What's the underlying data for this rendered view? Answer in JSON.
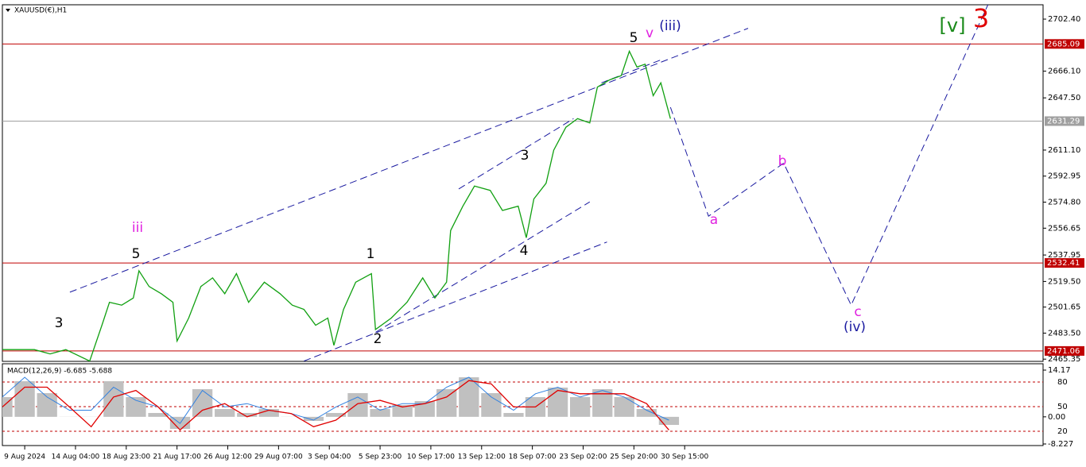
{
  "chart_data": [
    {
      "type": "line",
      "title": "XAUUSD(€),H1",
      "xlim": [
        -0.44,
        20.06
      ],
      "xticks": [
        {
          "value": 0,
          "label": "9 Aug 2024"
        },
        {
          "value": 1,
          "label": "14 Aug 04:00"
        },
        {
          "value": 2,
          "label": "18 Aug 23:00"
        },
        {
          "value": 3,
          "label": "21 Aug 17:00"
        },
        {
          "value": 4,
          "label": "26 Aug 12:00"
        },
        {
          "value": 5,
          "label": "29 Aug 07:00"
        },
        {
          "value": 6,
          "label": "3 Sep 04:00"
        },
        {
          "value": 7,
          "label": "5 Sep 23:00"
        },
        {
          "value": 8,
          "label": "10 Sep 17:00"
        },
        {
          "value": 9,
          "label": "13 Sep 12:00"
        },
        {
          "value": 10,
          "label": "18 Sep 07:00"
        },
        {
          "value": 11,
          "label": "23 Sep 02:00"
        },
        {
          "value": 12,
          "label": "25 Sep 20:00"
        },
        {
          "value": 13,
          "label": "30 Sep 15:00"
        }
      ],
      "ylim": [
        2463.8,
        2712.4
      ],
      "yticks": [
        {
          "value": 2702.4,
          "label": "2702.40"
        },
        {
          "value": 2666.1,
          "label": "2666.10"
        },
        {
          "value": 2647.5,
          "label": "2647.50"
        },
        {
          "value": 2611.1,
          "label": "2611.10"
        },
        2592.95,
        {
          "value": 2574.8,
          "label": "2574.80"
        },
        2556.65,
        2537.95,
        {
          "value": 2519.5,
          "label": "2519.50"
        },
        2501.65,
        {
          "value": 2483.5,
          "label": "2483.50"
        },
        2465.35
      ],
      "hlines": [
        {
          "value": 2685.09,
          "color": "#c00000"
        },
        {
          "value": 2631.29,
          "color": "#a0a0a0"
        },
        {
          "value": 2532.41,
          "color": "#c00000"
        },
        {
          "value": 2471.06,
          "color": "#c00000"
        }
      ],
      "x": [
        -0.44,
        0.19,
        0.5,
        0.81,
        1.28,
        1.52,
        1.67,
        1.91,
        2.14,
        2.25,
        2.45,
        2.69,
        2.92,
        3,
        3.23,
        3.47,
        3.7,
        3.94,
        4.17,
        4.41,
        4.72,
        5.03,
        5.27,
        5.5,
        5.73,
        5.97,
        6.09,
        6.28,
        6.52,
        6.83,
        6.91,
        7.22,
        7.53,
        7.84,
        8.08,
        8.31,
        8.39,
        8.63,
        8.86,
        9.17,
        9.41,
        9.72,
        9.88,
        10.03,
        10.27,
        10.42,
        10.66,
        10.89,
        11.13,
        11.28,
        11.52,
        11.75,
        11.91,
        12.06,
        12.22,
        12.38,
        12.53,
        12.72
      ],
      "series": [
        {
          "color": "#11a011",
          "values": [
            2472,
            2472,
            2469,
            2472,
            2464,
            2489,
            2505,
            2503,
            2508,
            2527,
            2516,
            2511,
            2505,
            2478,
            2494,
            2516,
            2522,
            2511,
            2525,
            2505,
            2519,
            2511,
            2503,
            2500,
            2489,
            2494,
            2475,
            2500,
            2519,
            2525,
            2486,
            2494,
            2505,
            2522,
            2508,
            2519,
            2555,
            2572,
            2586,
            2583,
            2569,
            2572,
            2550,
            2577,
            2588,
            2611,
            2627,
            2633,
            2630,
            2655,
            2660,
            2663,
            2680,
            2669,
            2671,
            2649,
            2658,
            2633
          ]
        }
      ],
      "projection": {
        "color": "#1a1aa0",
        "x": [
          12.72,
          13.47,
          14.95,
          16.28,
          19.02
        ],
        "values": [
          2641,
          2565,
          2602,
          2503,
          2716
        ]
      },
      "trendline_color": "#1a1aa0",
      "trendlines": [
        {
          "x": [
            0.89,
            14.25
          ],
          "values": [
            2512,
            2696
          ]
        },
        {
          "x": [
            8.55,
            10.81
          ],
          "values": [
            2584,
            2633
          ]
        },
        {
          "x": [
            6.91,
            11.13
          ],
          "values": [
            2484,
            2575
          ]
        },
        {
          "x": [
            5.5,
            11.47
          ],
          "values": [
            2464,
            2547
          ]
        },
        {
          "x": [
            11.36,
            12.53
          ],
          "values": [
            2658,
            2674
          ]
        }
      ],
      "wave_labels": [
        {
          "text": "3",
          "color": "#000000"
        },
        {
          "text": "iii",
          "color": "#e020e0"
        },
        {
          "text": "5",
          "color": "#000000"
        },
        {
          "text": "1",
          "color": "#000000"
        },
        {
          "text": "2",
          "color": "#000000"
        },
        {
          "text": "3",
          "color": "#000000"
        },
        {
          "text": "4",
          "color": "#000000"
        },
        {
          "text": "5",
          "color": "#000000"
        },
        {
          "text": "v",
          "color": "#e020e0"
        },
        {
          "text": "(iii)",
          "color": "#1a1aa0"
        },
        {
          "text": "a",
          "color": "#e020e0"
        },
        {
          "text": "b",
          "color": "#e020e0"
        },
        {
          "text": "c",
          "color": "#e020e0"
        },
        {
          "text": "(iv)",
          "color": "#1a1aa0"
        },
        {
          "text": "[v]",
          "color": "#1a8a1a"
        },
        {
          "text": "3",
          "color": "#e00000"
        }
      ]
    },
    {
      "type": "macd",
      "title": "MACD(12,26,9) -6.685 -5.688",
      "ylim": [
        -8.71,
        16.1
      ],
      "yticks": [
        14.17,
        {
          "value": 0,
          "label": "0.00"
        },
        -8.227
      ],
      "level_labels": [
        "80",
        "50",
        "20"
      ],
      "x": [
        -0.44,
        0,
        0.44,
        0.88,
        1.31,
        1.75,
        2.19,
        2.63,
        3.06,
        3.5,
        3.94,
        4.38,
        4.81,
        5.25,
        5.69,
        6.13,
        6.56,
        7,
        7.44,
        7.88,
        8.31,
        8.75,
        9.19,
        9.63,
        10.06,
        10.5,
        10.94,
        11.38,
        11.81,
        12.25,
        12.69
      ],
      "histogram": {
        "color": "#c0c0c0",
        "values": [
          5.98,
          10.8,
          7.19,
          -0.04,
          -0.04,
          10.8,
          5.98,
          1.17,
          -3.65,
          8.39,
          2.37,
          1.17,
          2.37,
          -0.04,
          -1.24,
          1.17,
          7.19,
          2.37,
          3.57,
          4.78,
          8.39,
          12,
          7.19,
          1.17,
          5.98,
          8.87,
          5.98,
          8.39,
          5.98,
          2.37,
          -2.45
        ]
      },
      "signal": {
        "color": "#e00000",
        "values": [
          3,
          9,
          9,
          3,
          -3,
          6,
          8,
          3,
          -4,
          2,
          4,
          0,
          2,
          1,
          -3,
          -1,
          4,
          5,
          3,
          4,
          6,
          11,
          10,
          3,
          3,
          8,
          7,
          7,
          7,
          4,
          -4
        ]
      },
      "line": {
        "color": "#3080e0",
        "values": [
          6,
          12,
          6,
          2,
          2,
          9,
          5,
          3,
          -2,
          8,
          3,
          4,
          2,
          1,
          -1,
          3,
          6,
          2,
          4,
          4,
          9,
          12,
          6,
          2,
          7,
          9,
          6,
          8,
          6,
          2,
          -1
        ]
      }
    }
  ]
}
